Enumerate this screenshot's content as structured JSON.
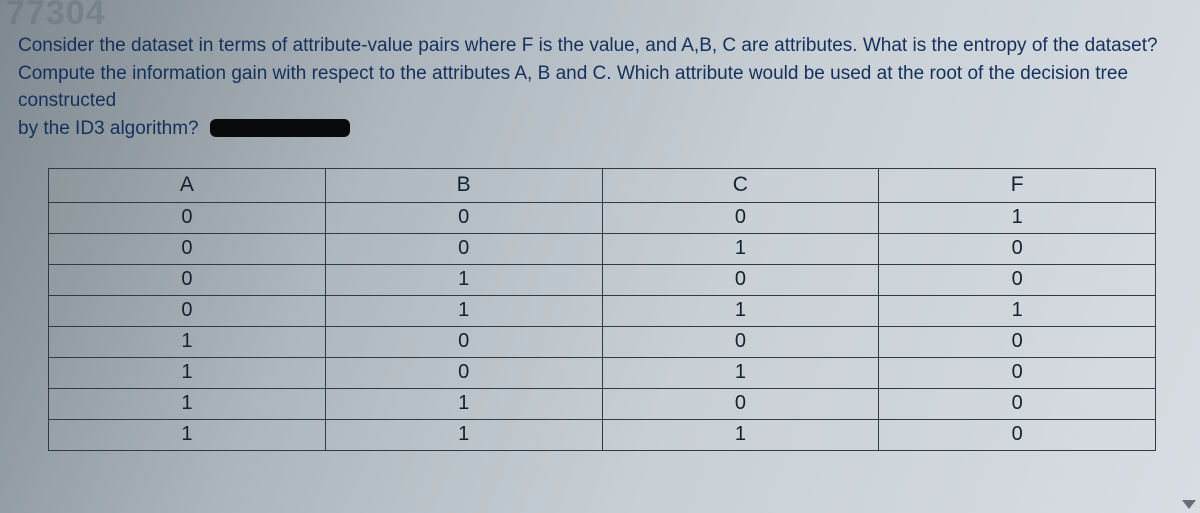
{
  "watermark": "77304",
  "question": {
    "line1": "Consider the dataset in terms of attribute-value pairs where F is the value, and A,B, C are attributes. What is the entropy of the dataset?",
    "line2a": "Compute the information gain with respect to the attributes A, B and C. Which attribute would be used at the root of the decision tree constructed",
    "line3": "by the ID3 algorithm?"
  },
  "table": {
    "columns": [
      "A",
      "B",
      "C",
      "F"
    ],
    "rows": [
      [
        "0",
        "0",
        "0",
        "1"
      ],
      [
        "0",
        "0",
        "1",
        "0"
      ],
      [
        "0",
        "1",
        "0",
        "0"
      ],
      [
        "0",
        "1",
        "1",
        "1"
      ],
      [
        "1",
        "0",
        "0",
        "0"
      ],
      [
        "1",
        "0",
        "1",
        "0"
      ],
      [
        "1",
        "1",
        "0",
        "0"
      ],
      [
        "1",
        "1",
        "1",
        "0"
      ]
    ],
    "border_color": "#2f3b44",
    "header_fontsize": 21,
    "cell_fontsize": 20,
    "text_color": "#14222e"
  },
  "colors": {
    "question_text": "#14305b",
    "bg_start": "#9aa6ae",
    "bg_end": "#d8dde2",
    "redaction": "#0a0a0a"
  }
}
